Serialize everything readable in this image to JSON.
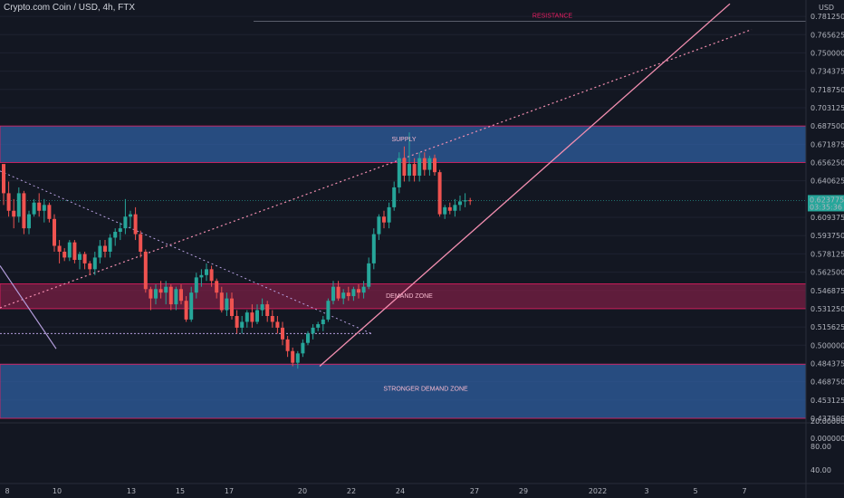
{
  "header": {
    "title": "Crypto.com Coin / USD, 4h, FTX"
  },
  "axis_unit": "USD",
  "colors": {
    "up": "#26a69a",
    "down": "#ef5350",
    "supply_zone": "#2f5fa0",
    "demand_zone": "#7a1f44",
    "zone_border": "#e91e63",
    "price_tag": "#26a69a",
    "trendline": "#f48fb1",
    "dotted_line": "#f48fb1"
  },
  "chart_data": {
    "type": "candlestick",
    "ylim": [
      0.4375,
      0.7875
    ],
    "y_ticks": [
      "0.781250",
      "0.765625",
      "0.750000",
      "0.734375",
      "0.718750",
      "0.703125",
      "0.687500",
      "0.671875",
      "0.656250",
      "0.640625",
      "0.609375",
      "0.593750",
      "0.578125",
      "0.562500",
      "0.546875",
      "0.531250",
      "0.515625",
      "0.500000",
      "0.484375",
      "0.468750",
      "0.453125",
      "0.437500"
    ],
    "x_ticks": [
      "8",
      "10",
      "13",
      "15",
      "17",
      "20",
      "22",
      "24",
      "27",
      "29",
      "2022",
      "3",
      "5",
      "7"
    ],
    "current_price": "0.623775",
    "countdown": "03:35:36",
    "volume_ticks": [
      "20.000000",
      "0.000000",
      "80.00",
      "40.00"
    ],
    "zones": [
      {
        "label": "SUPPLY",
        "from": 0.65625,
        "to": 0.6875
      },
      {
        "label": "DEMAND ZONE",
        "from": 0.53125,
        "to": 0.5525
      },
      {
        "label": "STRONGER DEMAND ZONE",
        "from": 0.4375,
        "to": 0.48375
      }
    ],
    "levels": [
      {
        "label": "RESISTANCE",
        "price": 0.777
      }
    ],
    "candles": [
      [
        0.655,
        0.655,
        0.62,
        0.63
      ],
      [
        0.63,
        0.64,
        0.61,
        0.615
      ],
      [
        0.615,
        0.625,
        0.6,
        0.61
      ],
      [
        0.61,
        0.635,
        0.605,
        0.63
      ],
      [
        0.63,
        0.632,
        0.595,
        0.6
      ],
      [
        0.6,
        0.615,
        0.595,
        0.612
      ],
      [
        0.612,
        0.625,
        0.61,
        0.622
      ],
      [
        0.622,
        0.63,
        0.61,
        0.615
      ],
      [
        0.615,
        0.625,
        0.605,
        0.62
      ],
      [
        0.62,
        0.622,
        0.605,
        0.608
      ],
      [
        0.608,
        0.612,
        0.58,
        0.585
      ],
      [
        0.585,
        0.59,
        0.57,
        0.58
      ],
      [
        0.58,
        0.583,
        0.572,
        0.575
      ],
      [
        0.575,
        0.59,
        0.572,
        0.588
      ],
      [
        0.588,
        0.59,
        0.57,
        0.573
      ],
      [
        0.573,
        0.58,
        0.565,
        0.578
      ],
      [
        0.578,
        0.58,
        0.565,
        0.57
      ],
      [
        0.57,
        0.572,
        0.56,
        0.565
      ],
      [
        0.565,
        0.58,
        0.56,
        0.575
      ],
      [
        0.575,
        0.59,
        0.57,
        0.585
      ],
      [
        0.585,
        0.59,
        0.575,
        0.58
      ],
      [
        0.58,
        0.595,
        0.575,
        0.592
      ],
      [
        0.592,
        0.6,
        0.585,
        0.597
      ],
      [
        0.597,
        0.605,
        0.59,
        0.6
      ],
      [
        0.6,
        0.625,
        0.595,
        0.61
      ],
      [
        0.61,
        0.615,
        0.6,
        0.612
      ],
      [
        0.612,
        0.618,
        0.59,
        0.595
      ],
      [
        0.595,
        0.598,
        0.575,
        0.58
      ],
      [
        0.58,
        0.582,
        0.545,
        0.548
      ],
      [
        0.548,
        0.55,
        0.53,
        0.54
      ],
      [
        0.54,
        0.552,
        0.535,
        0.548
      ],
      [
        0.548,
        0.555,
        0.54,
        0.545
      ],
      [
        0.545,
        0.555,
        0.535,
        0.55
      ],
      [
        0.55,
        0.552,
        0.53,
        0.535
      ],
      [
        0.535,
        0.55,
        0.53,
        0.548
      ],
      [
        0.548,
        0.552,
        0.535,
        0.538
      ],
      [
        0.538,
        0.542,
        0.52,
        0.522
      ],
      [
        0.522,
        0.55,
        0.52,
        0.545
      ],
      [
        0.545,
        0.562,
        0.54,
        0.558
      ],
      [
        0.558,
        0.565,
        0.55,
        0.56
      ],
      [
        0.56,
        0.57,
        0.555,
        0.565
      ],
      [
        0.565,
        0.568,
        0.55,
        0.555
      ],
      [
        0.555,
        0.557,
        0.54,
        0.545
      ],
      [
        0.545,
        0.55,
        0.528,
        0.53
      ],
      [
        0.53,
        0.545,
        0.525,
        0.54
      ],
      [
        0.54,
        0.545,
        0.522,
        0.525
      ],
      [
        0.525,
        0.53,
        0.51,
        0.515
      ],
      [
        0.515,
        0.525,
        0.51,
        0.52
      ],
      [
        0.52,
        0.53,
        0.515,
        0.528
      ],
      [
        0.528,
        0.535,
        0.515,
        0.52
      ],
      [
        0.52,
        0.535,
        0.518,
        0.53
      ],
      [
        0.53,
        0.54,
        0.525,
        0.535
      ],
      [
        0.535,
        0.538,
        0.52,
        0.525
      ],
      [
        0.525,
        0.53,
        0.515,
        0.52
      ],
      [
        0.52,
        0.525,
        0.51,
        0.515
      ],
      [
        0.515,
        0.52,
        0.5,
        0.505
      ],
      [
        0.505,
        0.508,
        0.49,
        0.495
      ],
      [
        0.495,
        0.498,
        0.482,
        0.485
      ],
      [
        0.485,
        0.495,
        0.48,
        0.493
      ],
      [
        0.493,
        0.505,
        0.49,
        0.502
      ],
      [
        0.502,
        0.512,
        0.5,
        0.51
      ],
      [
        0.51,
        0.518,
        0.505,
        0.515
      ],
      [
        0.515,
        0.52,
        0.512,
        0.518
      ],
      [
        0.518,
        0.525,
        0.512,
        0.522
      ],
      [
        0.522,
        0.54,
        0.52,
        0.538
      ],
      [
        0.538,
        0.555,
        0.535,
        0.55
      ],
      [
        0.55,
        0.555,
        0.538,
        0.54
      ],
      [
        0.54,
        0.548,
        0.535,
        0.545
      ],
      [
        0.545,
        0.55,
        0.538,
        0.542
      ],
      [
        0.542,
        0.55,
        0.538,
        0.548
      ],
      [
        0.548,
        0.552,
        0.54,
        0.545
      ],
      [
        0.545,
        0.555,
        0.54,
        0.55
      ],
      [
        0.55,
        0.575,
        0.548,
        0.57
      ],
      [
        0.57,
        0.6,
        0.565,
        0.595
      ],
      [
        0.595,
        0.612,
        0.59,
        0.61
      ],
      [
        0.61,
        0.615,
        0.6,
        0.605
      ],
      [
        0.605,
        0.622,
        0.6,
        0.618
      ],
      [
        0.618,
        0.64,
        0.615,
        0.635
      ],
      [
        0.635,
        0.665,
        0.63,
        0.66
      ],
      [
        0.66,
        0.67,
        0.64,
        0.645
      ],
      [
        0.645,
        0.682,
        0.64,
        0.655
      ],
      [
        0.655,
        0.66,
        0.64,
        0.645
      ],
      [
        0.645,
        0.665,
        0.64,
        0.66
      ],
      [
        0.66,
        0.665,
        0.645,
        0.65
      ],
      [
        0.65,
        0.662,
        0.645,
        0.66
      ],
      [
        0.66,
        0.663,
        0.645,
        0.648
      ],
      [
        0.648,
        0.65,
        0.61,
        0.612
      ],
      [
        0.612,
        0.62,
        0.608,
        0.618
      ],
      [
        0.618,
        0.622,
        0.612,
        0.615
      ],
      [
        0.615,
        0.625,
        0.61,
        0.62
      ],
      [
        0.62,
        0.628,
        0.615,
        0.623
      ],
      [
        0.623,
        0.63,
        0.618,
        0.624
      ],
      [
        0.624,
        0.626,
        0.62,
        0.6238
      ]
    ]
  }
}
